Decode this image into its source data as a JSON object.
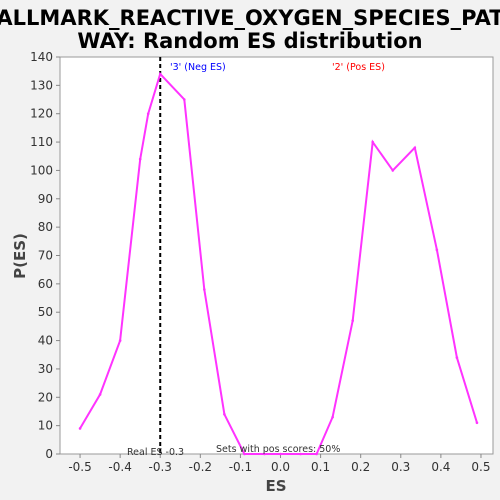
{
  "chart_data": {
    "type": "line",
    "title_line1": "HALLMARK_REACTIVE_OXYGEN_SPECIES_PATH",
    "title_line2": "WAY: Random ES distribution",
    "xlabel": "ES",
    "ylabel": "P(ES)",
    "xlim": [
      -0.55,
      0.53
    ],
    "ylim": [
      0,
      140
    ],
    "x_ticks": [
      -0.5,
      -0.4,
      -0.3,
      -0.2,
      -0.1,
      0.0,
      0.1,
      0.2,
      0.3,
      0.4,
      0.5
    ],
    "y_ticks": [
      0,
      10,
      20,
      30,
      40,
      50,
      60,
      70,
      80,
      90,
      100,
      110,
      120,
      130,
      140
    ],
    "series": [
      {
        "color": "#ff33ff",
        "x": [
          -0.5,
          -0.45,
          -0.4,
          -0.35,
          -0.33,
          -0.3,
          -0.24,
          -0.19,
          -0.14,
          -0.09,
          -0.04,
          0.0,
          0.05,
          0.09,
          0.13,
          0.18,
          0.23,
          0.28,
          0.335,
          0.39,
          0.44,
          0.49
        ],
        "y": [
          9,
          21,
          40,
          104,
          120,
          134,
          125,
          58,
          14,
          0,
          0,
          0,
          0,
          0,
          13,
          47,
          110,
          100,
          108,
          72,
          34,
          11
        ]
      }
    ],
    "real_es": {
      "value": -0.3,
      "label": "Real ES -0.3"
    },
    "neg_label": {
      "text": "'3' (Neg ES)",
      "color": "#0000ff"
    },
    "pos_label": {
      "text": "'2' (Pos ES)",
      "color": "#ff0000"
    },
    "pos_scores_label": "Sets with pos scores: 50%",
    "grid": false,
    "legend": "none"
  }
}
